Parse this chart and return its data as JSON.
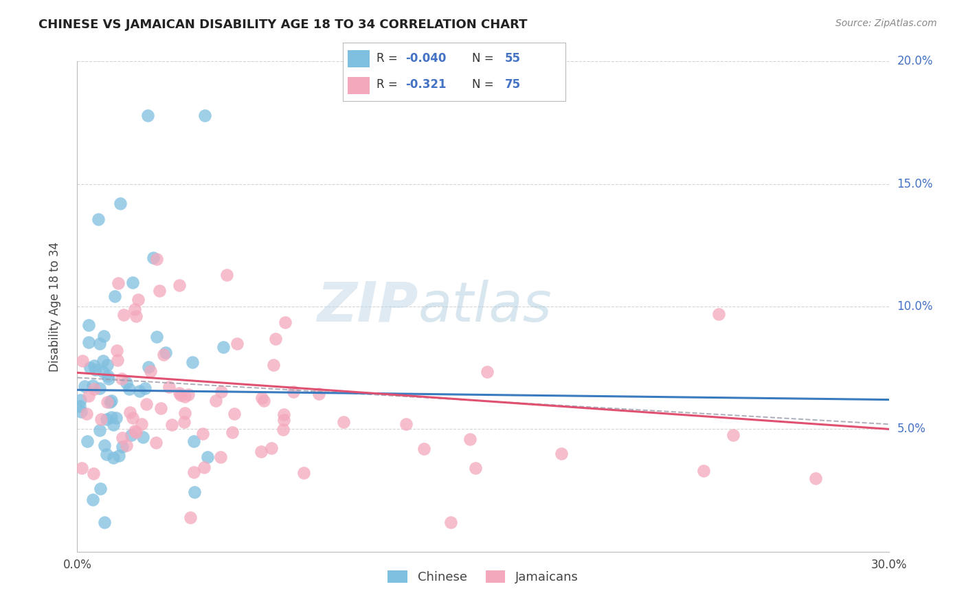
{
  "title": "CHINESE VS JAMAICAN DISABILITY AGE 18 TO 34 CORRELATION CHART",
  "source": "Source: ZipAtlas.com",
  "ylabel": "Disability Age 18 to 34",
  "xlim": [
    0.0,
    0.3
  ],
  "ylim": [
    0.0,
    0.2
  ],
  "xticks": [
    0.0,
    0.05,
    0.1,
    0.15,
    0.2,
    0.25,
    0.3
  ],
  "yticks": [
    0.05,
    0.1,
    0.15,
    0.2
  ],
  "xticklabels": [
    "0.0%",
    "",
    "",
    "",
    "",
    "",
    "30.0%"
  ],
  "yticklabels_right": [
    "5.0%",
    "10.0%",
    "15.0%",
    "20.0%"
  ],
  "R_chinese": -0.04,
  "N_chinese": 55,
  "R_jamaican": -0.321,
  "N_jamaican": 75,
  "chinese_color": "#7fbfdf",
  "jamaican_color": "#f4a8bc",
  "chinese_line_color": "#3a7bbf",
  "jamaican_line_color": "#e05070",
  "background_color": "#ffffff",
  "grid_color": "#d0d0d0",
  "right_label_color": "#4472c4",
  "title_color": "#222222",
  "source_color": "#888888",
  "watermark_color": "#d8e8f0",
  "chinese_line_start_y": 0.066,
  "chinese_line_end_y": 0.062,
  "jamaican_line_start_y": 0.073,
  "jamaican_line_end_y": 0.05,
  "dash_line_start_y": 0.071,
  "dash_line_end_y": 0.052
}
